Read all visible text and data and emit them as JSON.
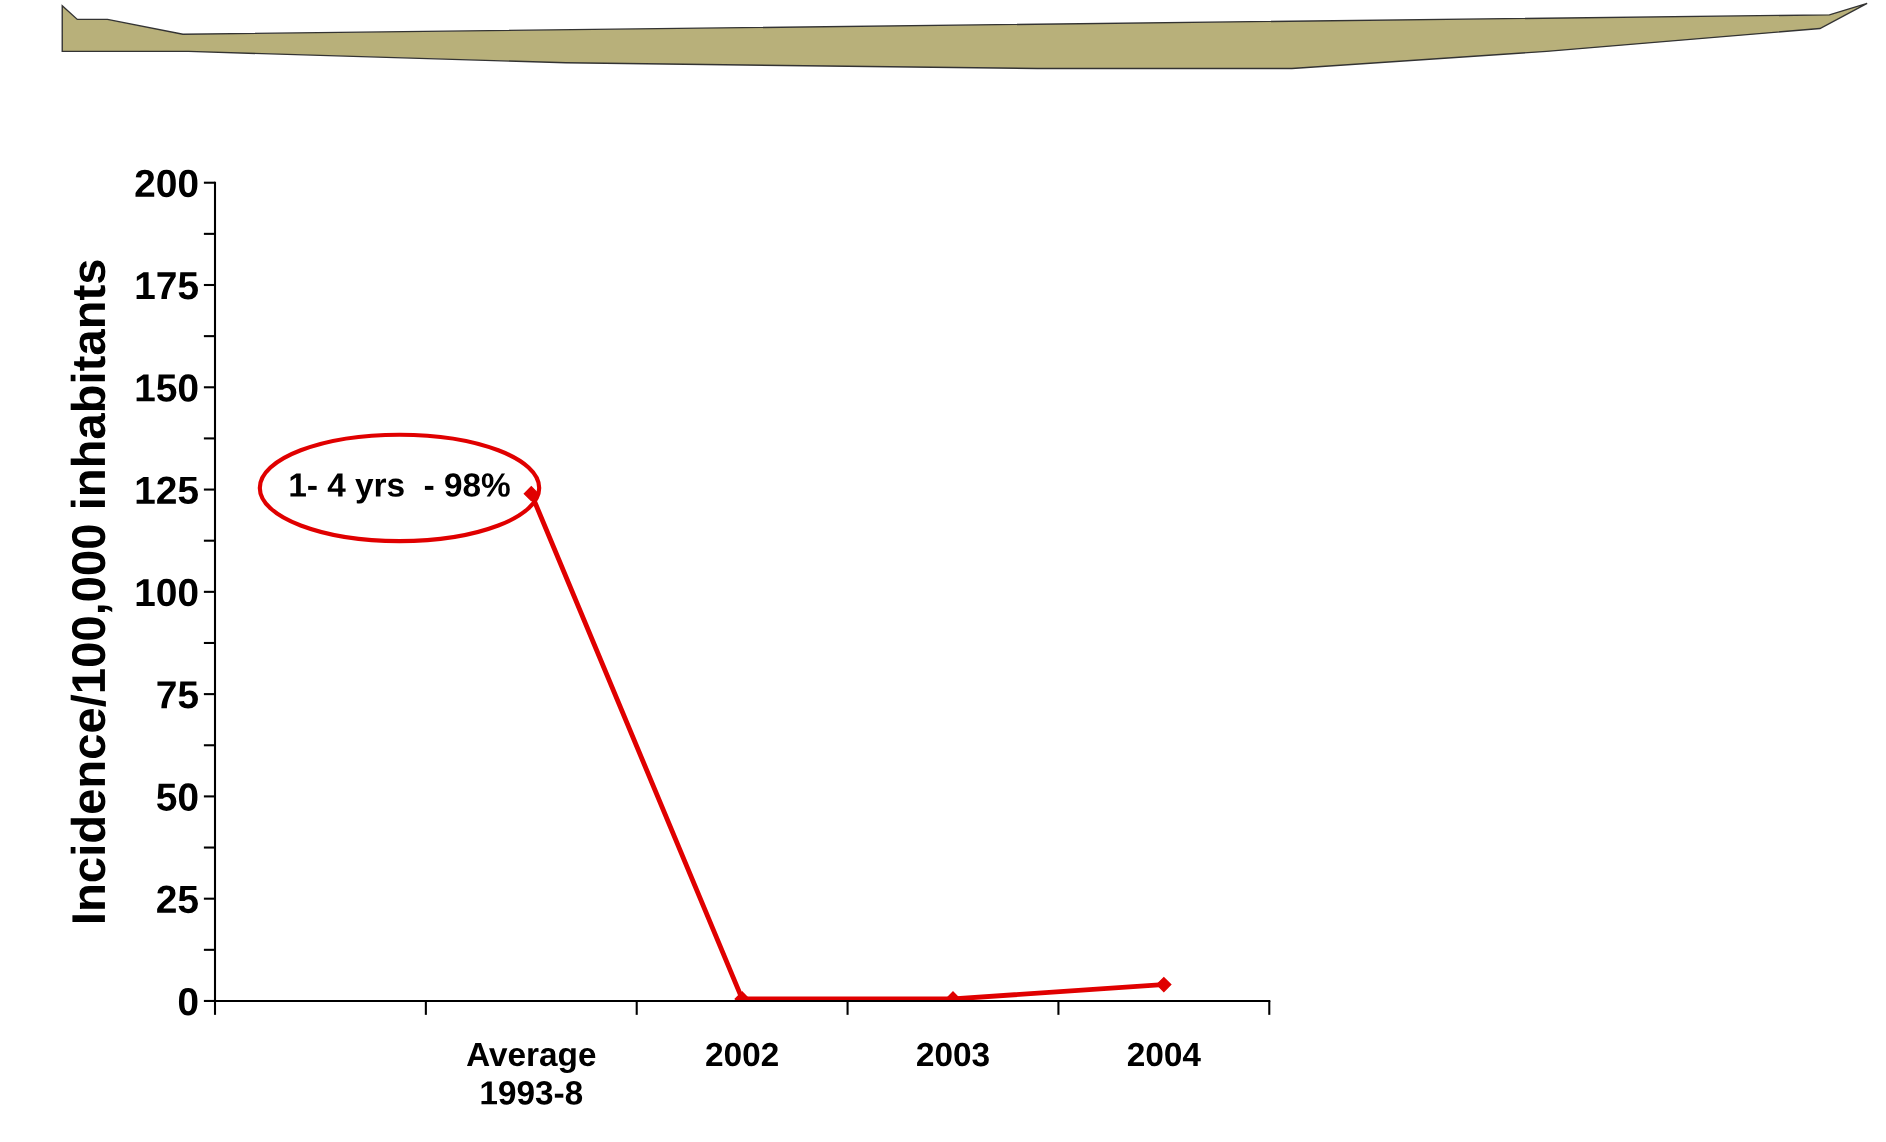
{
  "chart_data": {
    "type": "line",
    "ylabel": "Incidence/100,000 inhabitants",
    "categories": [
      null,
      "Average\n1993-8",
      "2002",
      "2003",
      "2004"
    ],
    "series": [
      {
        "color": "#e00000",
        "values": [
          null,
          124,
          0.5,
          0.5,
          4
        ]
      }
    ],
    "ylim": [
      0,
      200
    ],
    "yticks": [
      0,
      {
        "value": 12.5,
        "label": null
      },
      25,
      {
        "value": 37.5,
        "label": null
      },
      50,
      {
        "value": 62.5,
        "label": null
      },
      75,
      {
        "value": 87.5,
        "label": null
      },
      100,
      {
        "value": 112.5,
        "label": null
      },
      125,
      {
        "value": 137.5,
        "label": null
      },
      150,
      {
        "value": 162.5,
        "label": null
      },
      175,
      {
        "value": 187.5,
        "label": null
      },
      200
    ],
    "annotations": [
      "1- 4 yrs  - 98%"
    ],
    "marker": "diamond",
    "line_style": "solid",
    "grid": false,
    "legend": false
  }
}
